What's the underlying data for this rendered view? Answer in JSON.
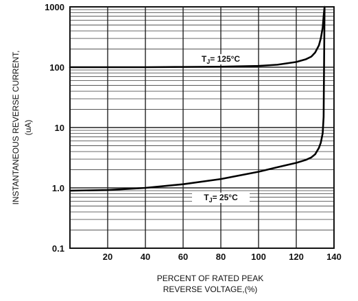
{
  "chart_data": {
    "type": "line",
    "title": "",
    "xlabel_line1": "PERCENT OF RATED PEAK",
    "xlabel_line2": "REVERSE VOLTAGE,(%)",
    "ylabel_line1": "INSTANTANEOUS REVERSE CURRENT,",
    "ylabel_line2": "(uA)",
    "x_scale": "linear",
    "y_scale": "log",
    "xlim": [
      0,
      140
    ],
    "ylim": [
      0.1,
      1000
    ],
    "x_ticks": [
      20,
      40,
      60,
      80,
      100,
      120,
      140
    ],
    "x_tick_labels": [
      "20",
      "40",
      "60",
      "80",
      "100",
      "120",
      "140"
    ],
    "y_ticks": [
      0.1,
      1,
      10,
      100,
      1000
    ],
    "y_tick_labels": [
      "0.1",
      "1.0",
      "10",
      "100",
      "1000"
    ],
    "grid": true,
    "series": [
      {
        "name": "TJ= 125°C",
        "label_prefix": "T",
        "label_sub": "J",
        "label_suffix": "= 125°C",
        "x": [
          0,
          20,
          40,
          60,
          80,
          100,
          110,
          120,
          125,
          128,
          130,
          132,
          133,
          134,
          134.5,
          135
        ],
        "y": [
          100,
          100,
          100,
          101,
          102,
          105,
          110,
          122,
          135,
          150,
          175,
          230,
          300,
          450,
          700,
          1000
        ]
      },
      {
        "name": "TJ= 25°C",
        "label_prefix": "T",
        "label_sub": "J",
        "label_suffix": "= 25°C",
        "x": [
          0,
          20,
          40,
          60,
          80,
          100,
          110,
          120,
          125,
          128,
          130,
          132,
          133,
          134,
          134.5,
          135
        ],
        "y": [
          0.9,
          0.92,
          1.0,
          1.15,
          1.4,
          1.85,
          2.2,
          2.6,
          2.9,
          3.2,
          3.6,
          4.6,
          5.6,
          8,
          15,
          1000
        ]
      }
    ]
  }
}
